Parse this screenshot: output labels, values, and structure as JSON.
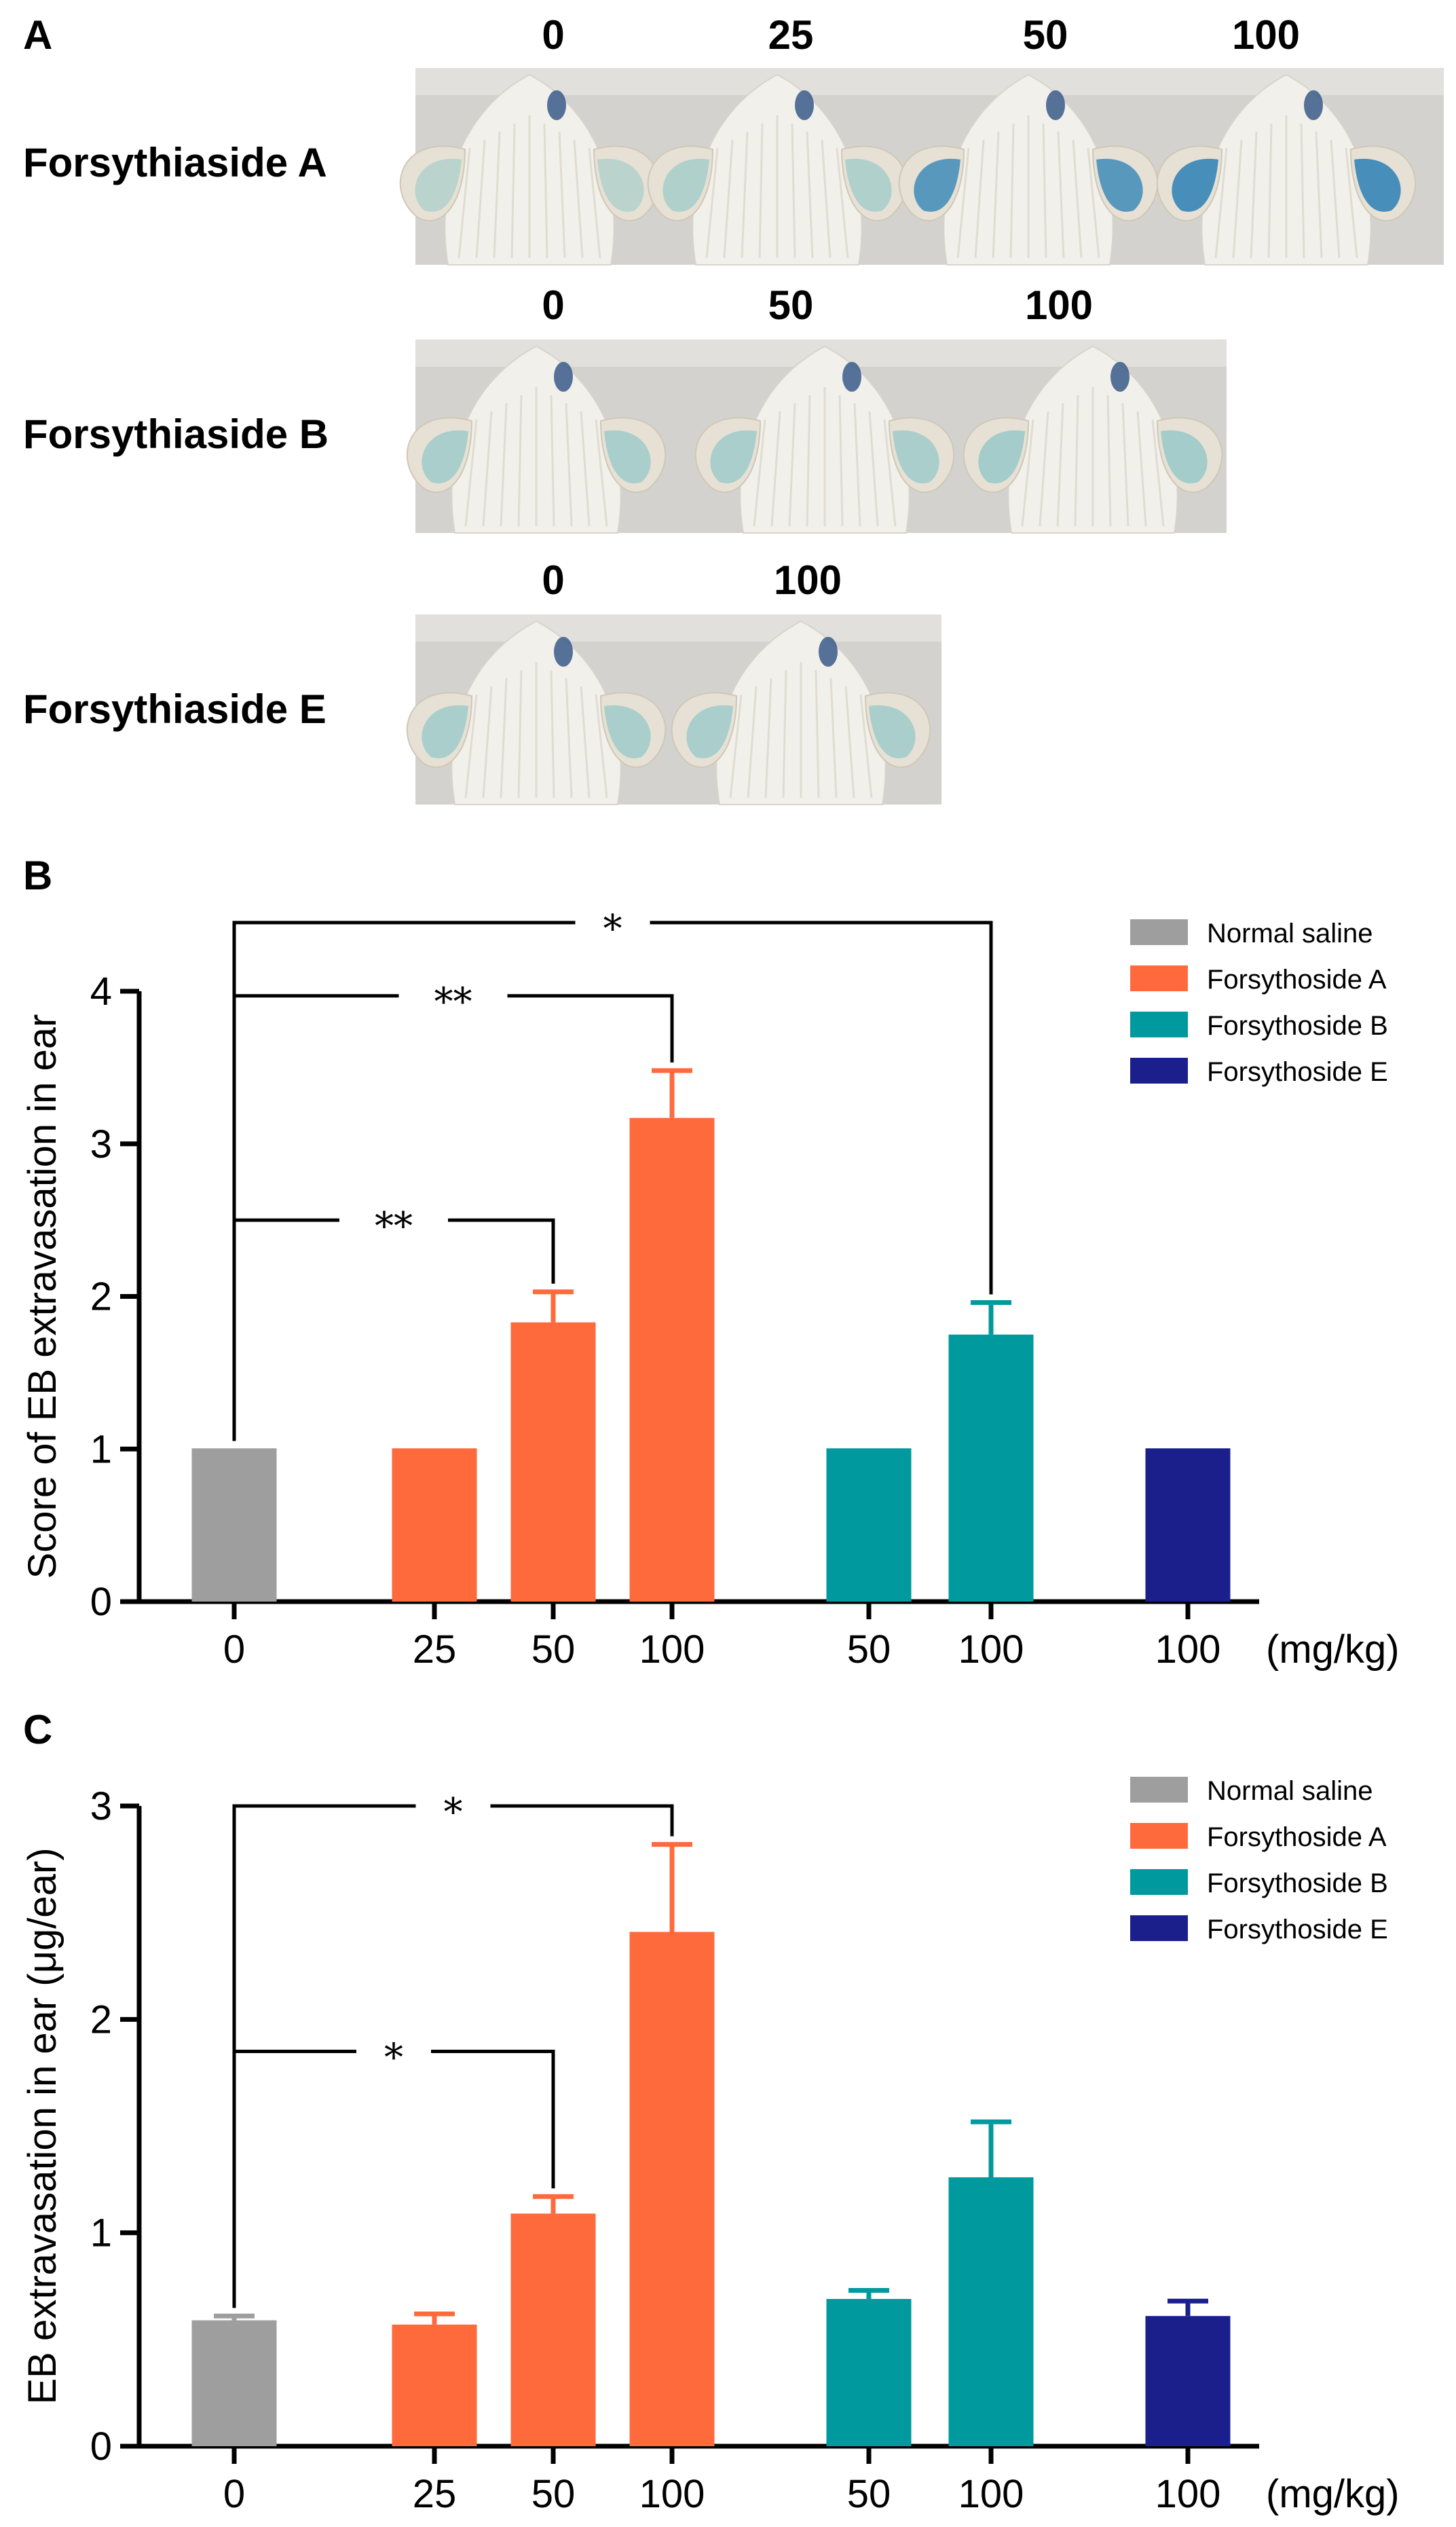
{
  "panel_a": {
    "label": "A",
    "rows": [
      {
        "compound": "Forsythiaside A",
        "doses": [
          "0",
          "25",
          "50",
          "100"
        ]
      },
      {
        "compound": "Forsythiaside B",
        "doses": [
          "0",
          "50",
          "100"
        ]
      },
      {
        "compound": "Forsythiaside E",
        "doses": [
          "0",
          "100"
        ]
      }
    ],
    "colors": {
      "backdrop": "#d4d2ce",
      "fur": "#f2f0ea",
      "dye": "#2a7fb6",
      "dye_light": "#7fc0c4",
      "skin": "#e6e1d4"
    }
  },
  "chart_data": [
    {
      "panel": "B",
      "type": "bar",
      "ylabel": "Score of EB extravasation in ear",
      "xlabel": "(mg/kg)",
      "ylim": [
        0,
        4
      ],
      "yticks": [
        "0",
        "1",
        "2",
        "3",
        "4"
      ],
      "grid": false,
      "legend_position": "top-right",
      "legend": [
        {
          "name": "Normal saline",
          "color": "#9e9e9e"
        },
        {
          "name": "Forsythoside A",
          "color": "#ff6a3d"
        },
        {
          "name": "Forsythoside B",
          "color": "#00999e"
        },
        {
          "name": "Forsythoside E",
          "color": "#1b1f8c"
        }
      ],
      "bars": [
        {
          "category": "0",
          "group": "Normal saline",
          "value": 1.0,
          "error": 0
        },
        {
          "category": "25",
          "group": "Forsythoside A",
          "value": 1.0,
          "error": 0
        },
        {
          "category": "50",
          "group": "Forsythoside A",
          "value": 1.83,
          "error": 0.2
        },
        {
          "category": "100",
          "group": "Forsythoside A",
          "value": 3.17,
          "error": 0.31
        },
        {
          "category": "50",
          "group": "Forsythoside B",
          "value": 1.0,
          "error": 0
        },
        {
          "category": "100",
          "group": "Forsythoside B",
          "value": 1.75,
          "error": 0.21
        },
        {
          "category": "100",
          "group": "Forsythoside E",
          "value": 1.0,
          "error": 0
        }
      ],
      "significance": [
        {
          "from": 0,
          "to": 5,
          "level": 4.45,
          "label": "*"
        },
        {
          "from": 0,
          "to": 3,
          "level": 3.97,
          "label": "**"
        },
        {
          "from": 0,
          "to": 2,
          "level": 2.5,
          "label": "**"
        }
      ]
    },
    {
      "panel": "C",
      "type": "bar",
      "ylabel": "EB extravasation in ear (μg/ear)",
      "xlabel": "(mg/kg)",
      "ylim": [
        0,
        3
      ],
      "yticks": [
        "0",
        "1",
        "2",
        "3"
      ],
      "grid": false,
      "legend_position": "top-right",
      "legend": [
        {
          "name": "Normal saline",
          "color": "#9e9e9e"
        },
        {
          "name": "Forsythoside A",
          "color": "#ff6a3d"
        },
        {
          "name": "Forsythoside B",
          "color": "#00999e"
        },
        {
          "name": "Forsythoside E",
          "color": "#1b1f8c"
        }
      ],
      "bars": [
        {
          "category": "0",
          "group": "Normal saline",
          "value": 0.59,
          "error": 0.02
        },
        {
          "category": "25",
          "group": "Forsythoside A",
          "value": 0.57,
          "error": 0.05
        },
        {
          "category": "50",
          "group": "Forsythoside A",
          "value": 1.09,
          "error": 0.08
        },
        {
          "category": "100",
          "group": "Forsythoside A",
          "value": 2.41,
          "error": 0.41
        },
        {
          "category": "50",
          "group": "Forsythoside B",
          "value": 0.69,
          "error": 0.04
        },
        {
          "category": "100",
          "group": "Forsythoside B",
          "value": 1.26,
          "error": 0.26
        },
        {
          "category": "100",
          "group": "Forsythoside E",
          "value": 0.61,
          "error": 0.07
        }
      ],
      "significance": [
        {
          "from": 0,
          "to": 3,
          "level": 3.0,
          "label": "*"
        },
        {
          "from": 0,
          "to": 2,
          "level": 1.85,
          "label": "*"
        }
      ]
    }
  ]
}
